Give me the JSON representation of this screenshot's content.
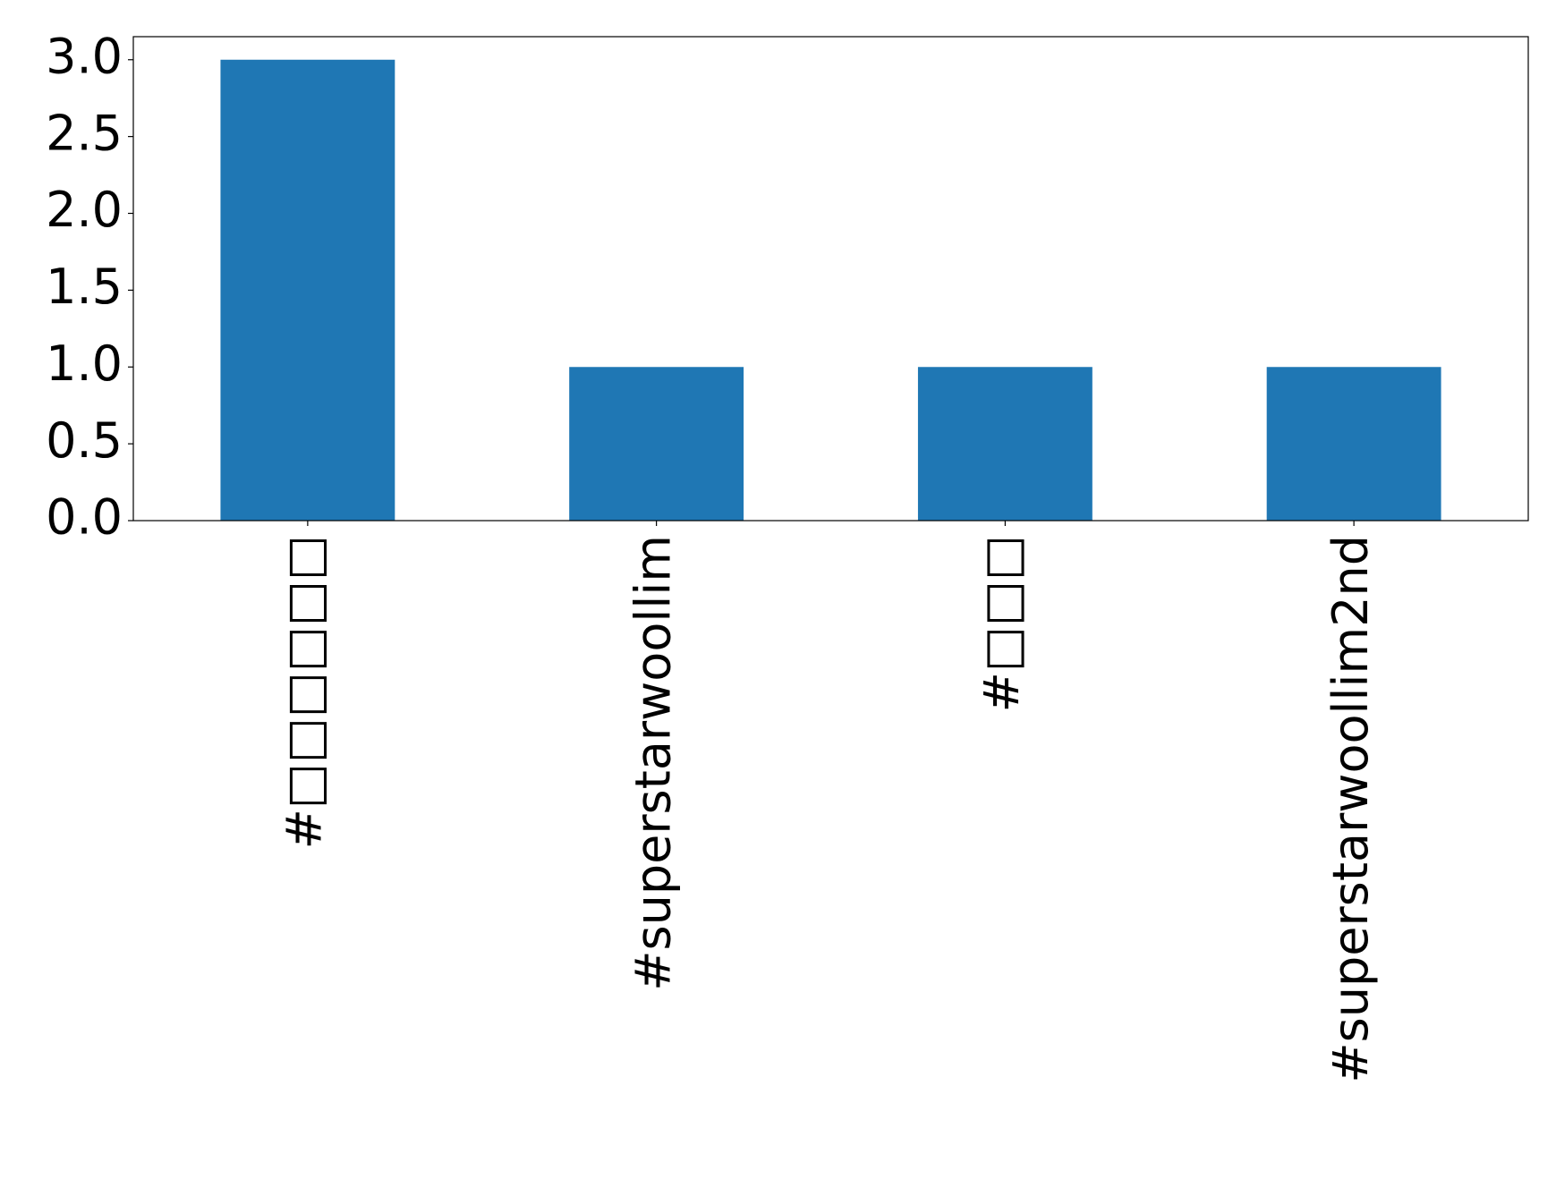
{
  "chart_data": {
    "type": "bar",
    "categories": [
      "#□□□□□□",
      "#superstarwoollim",
      "#□□□",
      "#superstarwoollim2nd"
    ],
    "values": [
      3,
      1,
      1,
      1
    ],
    "color": "#1f77b4",
    "ylim": [
      0,
      3.15
    ],
    "yticks": [
      {
        "value": 0,
        "label": "0.0"
      },
      0.5,
      {
        "value": 1,
        "label": "1.0"
      },
      1.5,
      {
        "value": 2,
        "label": "2.0"
      },
      2.5,
      {
        "value": 3,
        "label": "3.0"
      }
    ],
    "grid": false
  }
}
